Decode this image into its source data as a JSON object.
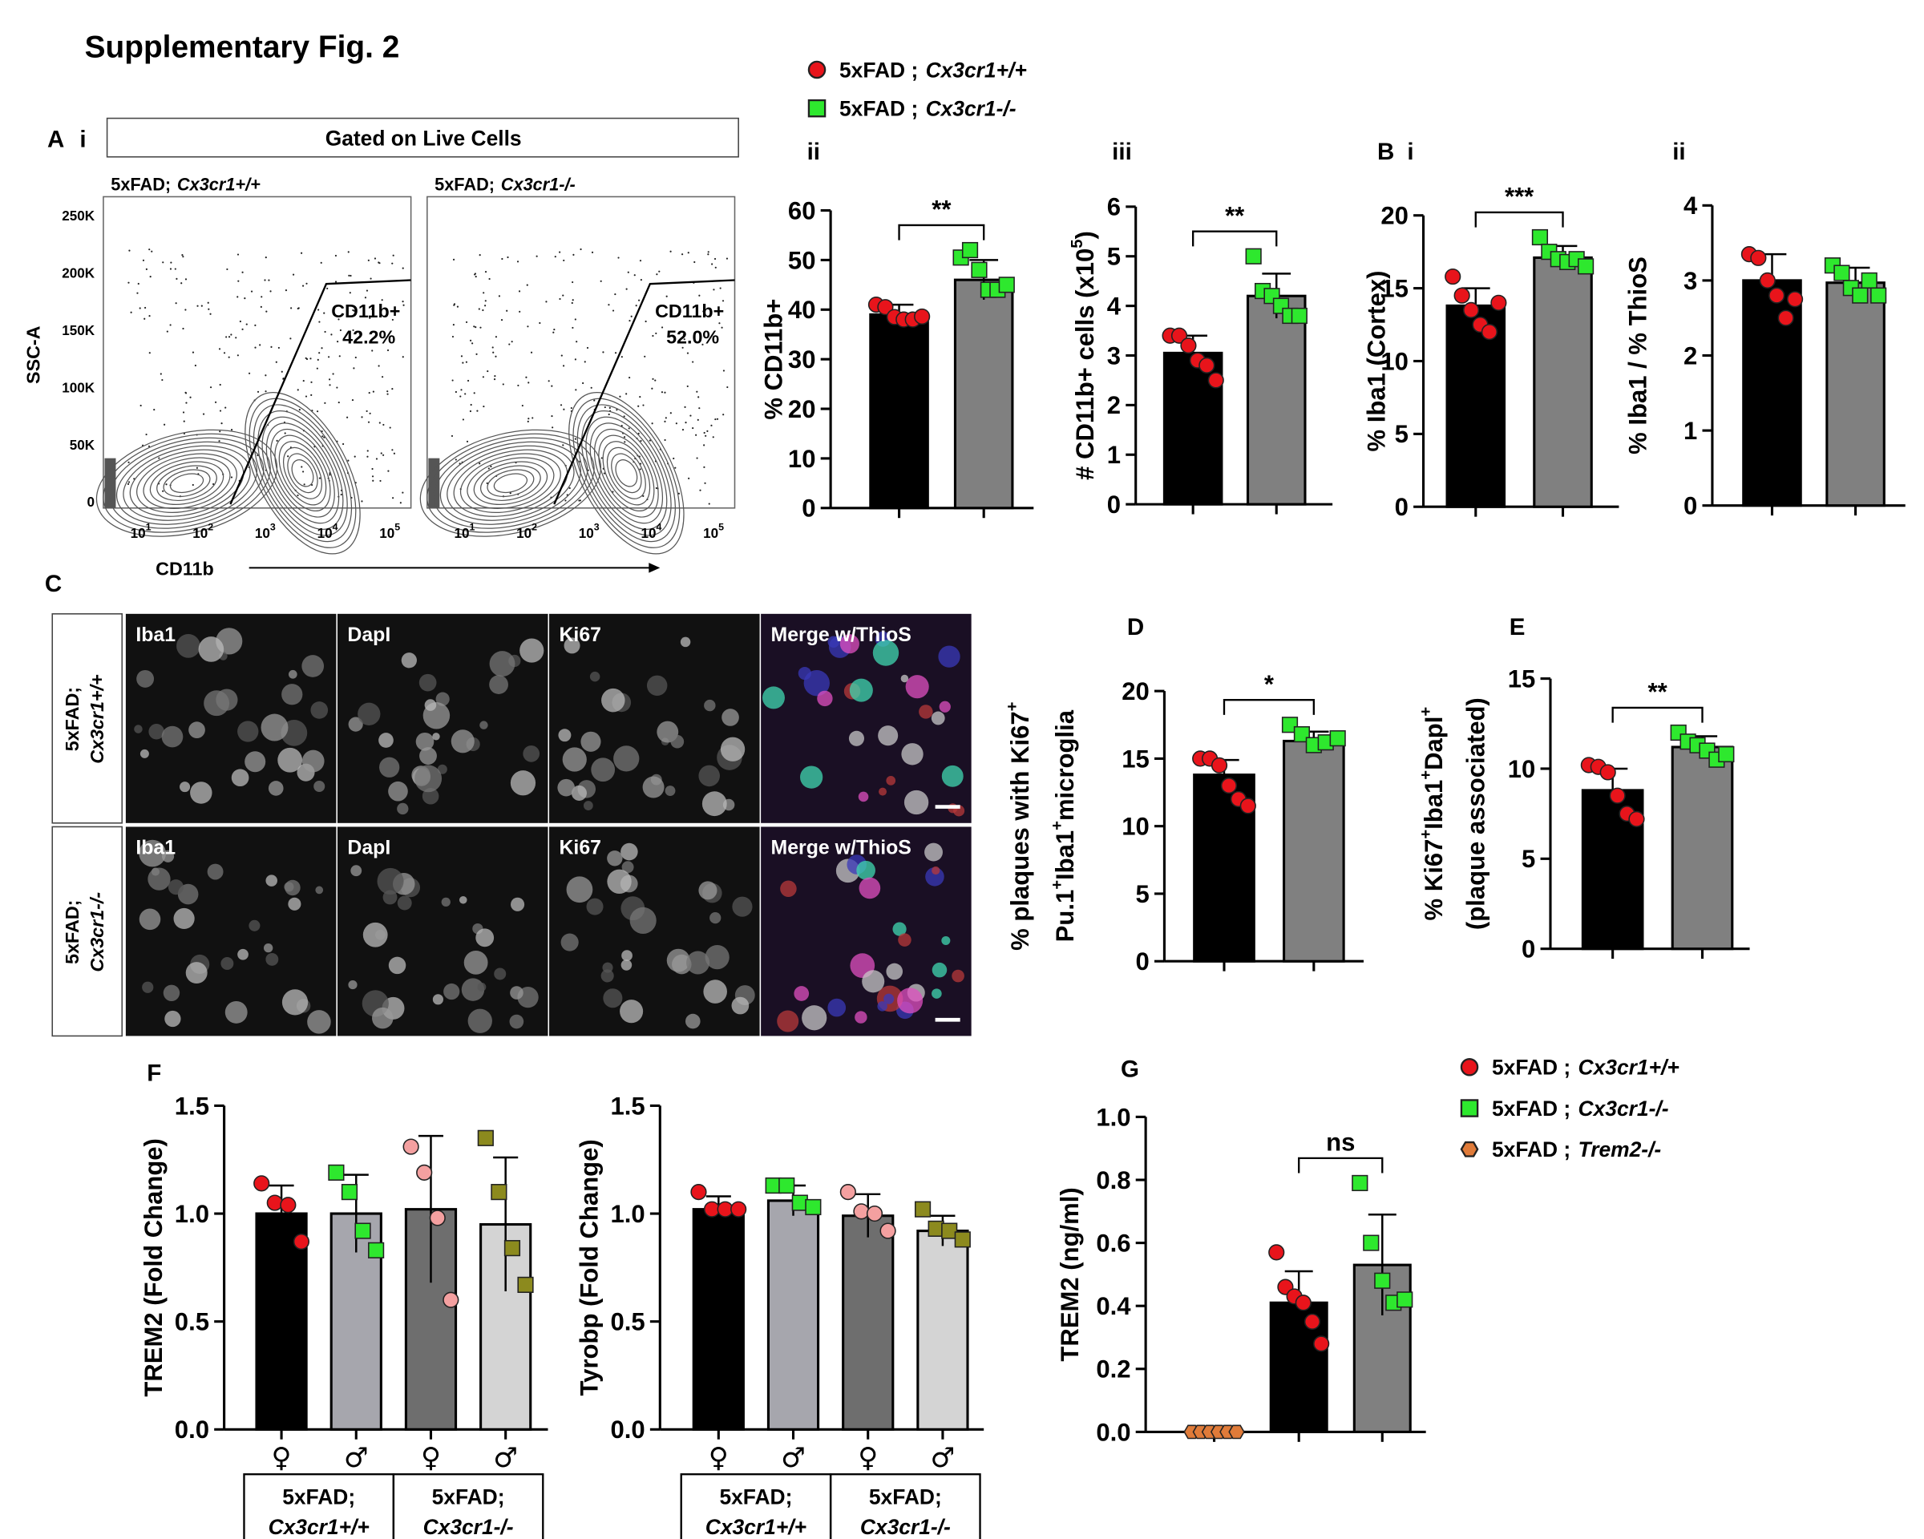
{
  "figure": {
    "title": "Supplementary Fig. 2",
    "panel_labels": {
      "A": "A",
      "Ai": "i",
      "Aii": "ii",
      "Aiii": "iii",
      "B": "B",
      "Bi": "i",
      "Bii": "ii",
      "C": "C",
      "D": "D",
      "E": "E",
      "F": "F",
      "G": "G"
    }
  },
  "legend_top": [
    {
      "label": "5xFAD ;",
      "label_italic": "Cx3cr1+/+",
      "color": "#e8141b",
      "marker": "circle"
    },
    {
      "label": "5xFAD ;",
      "label_italic": "Cx3cr1-/-",
      "color": "#2ee82e",
      "marker": "square"
    }
  ],
  "legend_g": [
    {
      "label": "5xFAD ;",
      "label_italic": "Cx3cr1+/+",
      "color": "#e8141b",
      "marker": "circle"
    },
    {
      "label": "5xFAD ;",
      "label_italic": "Cx3cr1-/-",
      "color": "#2ee82e",
      "marker": "square"
    },
    {
      "label": "5xFAD ;",
      "label_italic": "Trem2-/-",
      "color": "#e07b39",
      "marker": "hexagon"
    }
  ],
  "flow": {
    "gate_header": "Gated on Live Cells",
    "plots": [
      {
        "title": "5xFAD;",
        "title_italic": "Cx3cr1+/+",
        "gate_label": "CD11b+",
        "gate_percent": "42.2%"
      },
      {
        "title": "5xFAD;",
        "title_italic": "Cx3cr1-/-",
        "gate_label": "CD11b+",
        "gate_percent": "52.0%"
      }
    ],
    "ylabel": "SSC-A",
    "xlabel": "CD11b",
    "yticks": [
      "250K",
      "200K",
      "150K",
      "100K",
      "50K",
      "0"
    ],
    "xtick_base": "10",
    "xtick_exponents": [
      "1",
      "2",
      "3",
      "4",
      "5"
    ]
  },
  "micrographs": {
    "rows": [
      [
        "5xFAD;",
        "Cx3cr1+/+"
      ],
      [
        "5xFAD;",
        "Cx3cr1-/-"
      ]
    ],
    "columns": [
      "Iba1",
      "DapI",
      "Ki67",
      "Merge w/ThioS"
    ]
  },
  "chart_data": [
    {
      "type": "bar",
      "ylabel": [
        [
          "% CD11b+"
        ]
      ],
      "ylim": [
        0,
        60
      ],
      "yticks": [
        0,
        10,
        20,
        30,
        40,
        50,
        60
      ],
      "categories": [
        null,
        null
      ],
      "values": [
        39,
        46
      ],
      "errors": [
        2,
        4
      ],
      "colors": [
        "#000000",
        "#808080"
      ],
      "points": [
        [
          41,
          40.5,
          38.5,
          38,
          38,
          38.6
        ],
        [
          50.5,
          52,
          48,
          44,
          44,
          45
        ]
      ],
      "markers": [
        "circle",
        "square"
      ],
      "point_colors": [
        "#e8141b",
        "#2ee82e"
      ],
      "significance": "**"
    },
    {
      "type": "bar",
      "ylabel": [
        [
          "# CD11b+ cells (x10",
          "5",
          ")"
        ]
      ],
      "ylim": [
        0,
        6
      ],
      "yticks": [
        0,
        1,
        2,
        3,
        4,
        5,
        6
      ],
      "categories": [
        null,
        null
      ],
      "values": [
        3.05,
        4.2
      ],
      "errors": [
        0.35,
        0.45
      ],
      "colors": [
        "#000000",
        "#808080"
      ],
      "points": [
        [
          3.4,
          3.4,
          3.2,
          2.9,
          2.8,
          2.5
        ],
        [
          5.0,
          4.3,
          4.2,
          4.0,
          3.8,
          3.8
        ]
      ],
      "markers": [
        "circle",
        "square"
      ],
      "point_colors": [
        "#e8141b",
        "#2ee82e"
      ],
      "significance": "**"
    },
    {
      "type": "bar",
      "ylabel": [
        [
          "% Iba1 (Cortex)"
        ]
      ],
      "ylim": [
        0,
        20
      ],
      "yticks": [
        0,
        5,
        10,
        15,
        20
      ],
      "categories": [
        null,
        null
      ],
      "values": [
        13.8,
        17.1
      ],
      "errors": [
        1.2,
        0.8
      ],
      "colors": [
        "#000000",
        "#808080"
      ],
      "points": [
        [
          15.8,
          14.5,
          13.5,
          12.5,
          12,
          14
        ],
        [
          18.5,
          17.5,
          17,
          16.8,
          17,
          16.5
        ]
      ],
      "markers": [
        "circle",
        "square"
      ],
      "point_colors": [
        "#e8141b",
        "#2ee82e"
      ],
      "significance": "***"
    },
    {
      "type": "bar",
      "ylabel": [
        [
          "% Iba1 / % ThioS"
        ]
      ],
      "ylim": [
        0,
        4
      ],
      "yticks": [
        0,
        1,
        2,
        3,
        4
      ],
      "categories": [
        null,
        null
      ],
      "values": [
        3.0,
        2.97
      ],
      "errors": [
        0.35,
        0.2
      ],
      "colors": [
        "#000000",
        "#808080"
      ],
      "points": [
        [
          3.35,
          3.3,
          3.0,
          2.8,
          2.5,
          2.75
        ],
        [
          3.2,
          3.1,
          2.9,
          2.8,
          3.0,
          2.8
        ]
      ],
      "markers": [
        "circle",
        "square"
      ],
      "point_colors": [
        "#e8141b",
        "#2ee82e"
      ]
    },
    {
      "type": "bar",
      "ylabel": [
        [
          "% plaques with Ki67",
          "+"
        ],
        [
          "Pu.1",
          "+",
          "Iba1",
          "+",
          "microglia"
        ]
      ],
      "ylim": [
        0,
        20
      ],
      "yticks": [
        0,
        5,
        10,
        15,
        20
      ],
      "categories": [
        null,
        null
      ],
      "values": [
        13.8,
        16.3
      ],
      "errors": [
        1.1,
        0.7
      ],
      "colors": [
        "#000000",
        "#808080"
      ],
      "points": [
        [
          15,
          15,
          14.5,
          13,
          12,
          11.5
        ],
        [
          17.5,
          16.8,
          16,
          16.2,
          16.5
        ]
      ],
      "markers": [
        "circle",
        "square"
      ],
      "point_colors": [
        "#e8141b",
        "#2ee82e"
      ],
      "significance": "*"
    },
    {
      "type": "bar",
      "ylabel": [
        [
          "% Ki67",
          "+",
          "Iba1",
          "+",
          "DapI",
          "+"
        ],
        [
          "(plaque associated)"
        ]
      ],
      "ylim": [
        0,
        15
      ],
      "yticks": [
        0,
        5,
        10,
        15
      ],
      "categories": [
        null,
        null
      ],
      "values": [
        8.8,
        11.2
      ],
      "errors": [
        1.2,
        0.6
      ],
      "colors": [
        "#000000",
        "#808080"
      ],
      "points": [
        [
          10.2,
          10.1,
          9.8,
          8.5,
          7.5,
          7.2
        ],
        [
          12,
          11.5,
          11.3,
          11,
          10.5,
          10.8
        ]
      ],
      "markers": [
        "circle",
        "square"
      ],
      "point_colors": [
        "#e8141b",
        "#2ee82e"
      ],
      "significance": "**"
    },
    {
      "type": "bar",
      "ylabel": [
        [
          "TREM2 (Fold Change)"
        ]
      ],
      "ylim": [
        0,
        1.5
      ],
      "yticks": [
        {
          "value": 0,
          "label": "0.0"
        },
        0.5,
        {
          "value": 1,
          "label": "1.0"
        },
        1.5
      ],
      "categories": [
        "♀",
        "♂",
        "♀",
        "♂"
      ],
      "values": [
        1.0,
        1.0,
        1.02,
        0.95
      ],
      "errors": [
        0.13,
        0.18,
        0.34,
        0.31
      ],
      "colors": [
        "#000000",
        "#a6a6ad",
        "#6e6e6e",
        "#d4d4d4"
      ],
      "points": [
        [
          1.14,
          1.05,
          1.04,
          0.87
        ],
        [
          1.19,
          1.1,
          0.92,
          0.83
        ],
        [
          1.31,
          1.19,
          0.98,
          0.6
        ],
        [
          1.35,
          1.1,
          0.84,
          0.67
        ]
      ],
      "markers": [
        "circle",
        "square",
        "circle",
        "square"
      ],
      "point_colors": [
        "#e8141b",
        "#2ee82e",
        "#f4a0a0",
        "#8c8a1e"
      ],
      "groups": [
        [
          "5xFAD;",
          "Cx3cr1+/+"
        ],
        [
          "5xFAD;",
          "Cx3cr1-/-"
        ]
      ]
    },
    {
      "type": "bar",
      "ylabel": [
        [
          "Tyrobp (Fold Change)"
        ]
      ],
      "ylim": [
        0,
        1.5
      ],
      "yticks": [
        {
          "value": 0,
          "label": "0.0"
        },
        0.5,
        {
          "value": 1,
          "label": "1.0"
        },
        1.5
      ],
      "categories": [
        "♀",
        "♂",
        "♀",
        "♂"
      ],
      "values": [
        1.02,
        1.06,
        0.99,
        0.92
      ],
      "errors": [
        0.06,
        0.07,
        0.1,
        0.07
      ],
      "colors": [
        "#000000",
        "#a6a6ad",
        "#6e6e6e",
        "#d4d4d4"
      ],
      "points": [
        [
          1.1,
          1.02,
          1.02,
          1.02
        ],
        [
          1.13,
          1.13,
          1.05,
          1.03
        ],
        [
          1.1,
          1.01,
          1.0,
          0.92
        ],
        [
          1.02,
          0.93,
          0.92,
          0.88
        ]
      ],
      "markers": [
        "circle",
        "square",
        "circle",
        "square"
      ],
      "point_colors": [
        "#e8141b",
        "#2ee82e",
        "#f4a0a0",
        "#8c8a1e"
      ],
      "groups": [
        [
          "5xFAD;",
          "Cx3cr1+/+"
        ],
        [
          "5xFAD;",
          "Cx3cr1-/-"
        ]
      ]
    },
    {
      "type": "bar",
      "ylabel": [
        [
          "TREM2 (ng/ml)"
        ]
      ],
      "ylim": [
        0,
        1
      ],
      "yticks": [
        {
          "value": 0,
          "label": "0.0"
        },
        0.2,
        0.4,
        0.6,
        0.8,
        {
          "value": 1,
          "label": "1.0"
        }
      ],
      "categories": [
        null,
        null,
        null
      ],
      "values": [
        0,
        0.41,
        0.53
      ],
      "errors": [
        0,
        0.1,
        0.16
      ],
      "colors": [
        "#000000",
        "#000000",
        "#808080"
      ],
      "points": [
        [
          0,
          0,
          0,
          0,
          0,
          0
        ],
        [
          0.57,
          0.46,
          0.43,
          0.41,
          0.35,
          0.28
        ],
        [
          0.79,
          0.6,
          0.48,
          0.41,
          0.42
        ]
      ],
      "markers": [
        "hexagon",
        "circle",
        "square"
      ],
      "point_colors": [
        "#e07b39",
        "#e8141b",
        "#2ee82e"
      ],
      "significance": "ns"
    }
  ]
}
